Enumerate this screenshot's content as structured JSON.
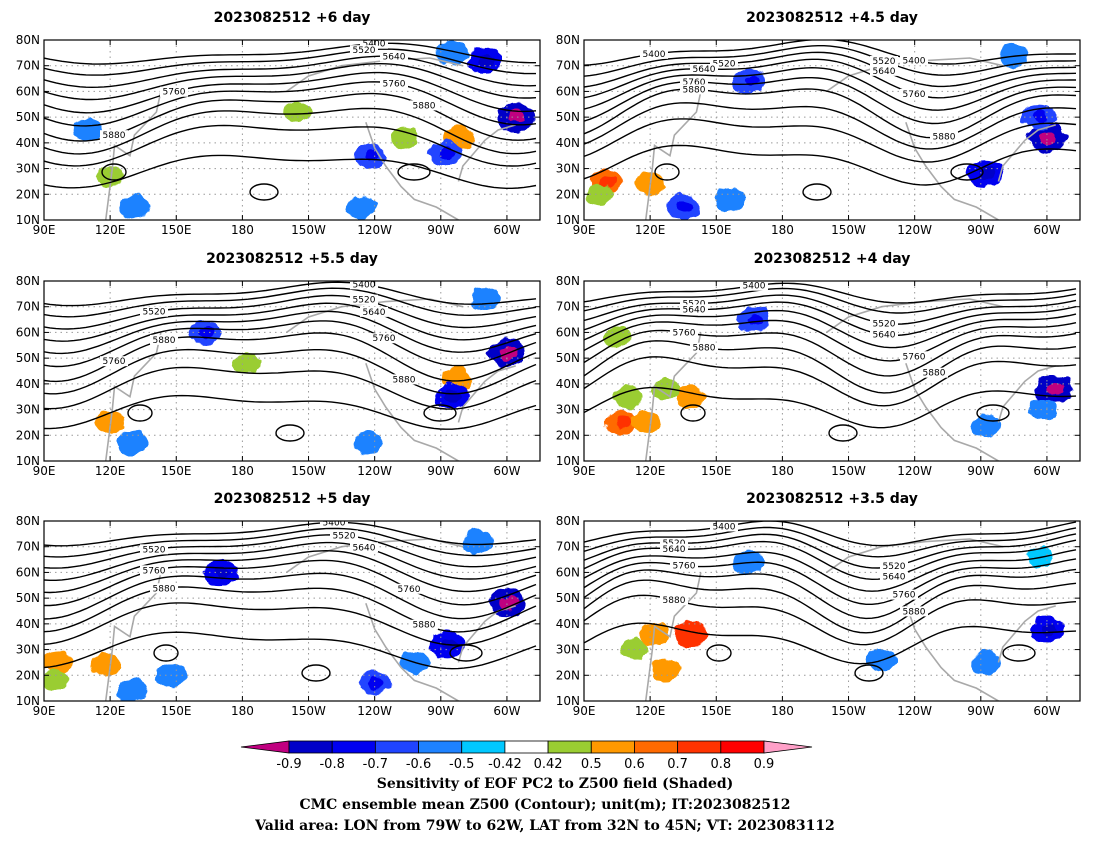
{
  "panels": [
    {
      "title": "2023082512 +6 day",
      "contour_labels": [
        "5400",
        "5520",
        "5640",
        "5760",
        "5880",
        "5760",
        "5880"
      ],
      "shading": [
        {
          "lon": 278,
          "lat": 42,
          "v": 0.58
        },
        {
          "lon": 205,
          "lat": 52,
          "v": 0.46
        },
        {
          "lon": 253,
          "lat": 42,
          "v": 0.46
        },
        {
          "lon": 290,
          "lat": 72,
          "v": -0.72
        },
        {
          "lon": 275,
          "lat": 75,
          "v": -0.6
        },
        {
          "lon": 304,
          "lat": 50,
          "v": -0.85
        },
        {
          "lon": 272,
          "lat": 36,
          "v": -0.7
        },
        {
          "lon": 238,
          "lat": 35,
          "v": -0.62
        },
        {
          "lon": 131,
          "lat": 15,
          "v": -0.6
        },
        {
          "lon": 234,
          "lat": 15,
          "v": -0.6
        },
        {
          "lon": 120,
          "lat": 27,
          "v": 0.46
        },
        {
          "lon": 110,
          "lat": 45,
          "v": -0.55
        }
      ]
    },
    {
      "title": "2023082512 +4.5 day",
      "contour_labels": [
        "5400",
        "5400",
        "5520",
        "5520",
        "5640",
        "5640",
        "5760",
        "5760",
        "5880",
        "5880"
      ],
      "shading": [
        {
          "lon": 100,
          "lat": 25,
          "v": 0.65
        },
        {
          "lon": 97,
          "lat": 20,
          "v": 0.46
        },
        {
          "lon": 120,
          "lat": 24,
          "v": 0.58
        },
        {
          "lon": 165,
          "lat": 64,
          "v": -0.65
        },
        {
          "lon": 300,
          "lat": 42,
          "v": -0.85
        },
        {
          "lon": 296,
          "lat": 50,
          "v": -0.7
        },
        {
          "lon": 135,
          "lat": 15,
          "v": -0.7
        },
        {
          "lon": 156,
          "lat": 18,
          "v": -0.6
        },
        {
          "lon": 272,
          "lat": 28,
          "v": -0.75
        },
        {
          "lon": 285,
          "lat": 74,
          "v": -0.55
        }
      ]
    },
    {
      "title": "2023082512 +5.5 day",
      "contour_labels": [
        "5400",
        "5520",
        "5520",
        "5640",
        "5760",
        "5760",
        "5880",
        "5880"
      ],
      "shading": [
        {
          "lon": 300,
          "lat": 52,
          "v": -0.85
        },
        {
          "lon": 163,
          "lat": 60,
          "v": -0.65
        },
        {
          "lon": 182,
          "lat": 48,
          "v": 0.46
        },
        {
          "lon": 277,
          "lat": 42,
          "v": 0.58
        },
        {
          "lon": 275,
          "lat": 35,
          "v": -0.75
        },
        {
          "lon": 290,
          "lat": 73,
          "v": -0.55
        },
        {
          "lon": 120,
          "lat": 25,
          "v": 0.58
        },
        {
          "lon": 130,
          "lat": 17,
          "v": -0.6
        },
        {
          "lon": 237,
          "lat": 17,
          "v": -0.55
        }
      ]
    },
    {
      "title": "2023082512 +4 day",
      "contour_labels": [
        "5400",
        "5520",
        "5520",
        "5640",
        "5640",
        "5760",
        "5760",
        "5880",
        "5880"
      ],
      "shading": [
        {
          "lon": 107,
          "lat": 25,
          "v": 0.63
        },
        {
          "lon": 118,
          "lat": 25,
          "v": 0.55
        },
        {
          "lon": 138,
          "lat": 35,
          "v": 0.55
        },
        {
          "lon": 110,
          "lat": 35,
          "v": 0.46
        },
        {
          "lon": 127,
          "lat": 38,
          "v": 0.46
        },
        {
          "lon": 303,
          "lat": 38,
          "v": -0.85
        },
        {
          "lon": 167,
          "lat": 65,
          "v": -0.65
        },
        {
          "lon": 298,
          "lat": 30,
          "v": -0.55
        },
        {
          "lon": 272,
          "lat": 24,
          "v": -0.55
        },
        {
          "lon": 105,
          "lat": 58,
          "v": 0.46
        }
      ]
    },
    {
      "title": "2023082512 +5 day",
      "contour_labels": [
        "5400",
        "5520",
        "5520",
        "5640",
        "5760",
        "5760",
        "5880",
        "5880"
      ],
      "shading": [
        {
          "lon": 96,
          "lat": 25,
          "v": 0.55
        },
        {
          "lon": 95,
          "lat": 18,
          "v": 0.46
        },
        {
          "lon": 118,
          "lat": 24,
          "v": 0.55
        },
        {
          "lon": 170,
          "lat": 60,
          "v": -0.72
        },
        {
          "lon": 300,
          "lat": 48,
          "v": -0.85
        },
        {
          "lon": 273,
          "lat": 32,
          "v": -0.75
        },
        {
          "lon": 240,
          "lat": 17,
          "v": -0.62
        },
        {
          "lon": 148,
          "lat": 20,
          "v": -0.6
        },
        {
          "lon": 130,
          "lat": 14,
          "v": -0.6
        },
        {
          "lon": 287,
          "lat": 72,
          "v": -0.6
        },
        {
          "lon": 258,
          "lat": 25,
          "v": -0.55
        }
      ]
    },
    {
      "title": "2023082512 +3.5 day",
      "contour_labels": [
        "5400",
        "5520",
        "5520",
        "5640",
        "5640",
        "5760",
        "5760",
        "5880",
        "5880"
      ],
      "shading": [
        {
          "lon": 138,
          "lat": 36,
          "v": 0.7
        },
        {
          "lon": 122,
          "lat": 36,
          "v": 0.58
        },
        {
          "lon": 113,
          "lat": 30,
          "v": 0.46
        },
        {
          "lon": 127,
          "lat": 22,
          "v": 0.55
        },
        {
          "lon": 300,
          "lat": 38,
          "v": -0.75
        },
        {
          "lon": 165,
          "lat": 64,
          "v": -0.6
        },
        {
          "lon": 272,
          "lat": 25,
          "v": -0.55
        },
        {
          "lon": 225,
          "lat": 26,
          "v": -0.55
        },
        {
          "lon": 297,
          "lat": 66,
          "v": -0.45
        }
      ]
    }
  ],
  "axes": {
    "x_ticks": [
      "90E",
      "120E",
      "150E",
      "180",
      "150W",
      "120W",
      "90W",
      "60W"
    ],
    "y_ticks": [
      "10N",
      "20N",
      "30N",
      "40N",
      "50N",
      "60N",
      "70N",
      "80N"
    ],
    "lon_range": [
      90,
      315
    ],
    "lat_range": [
      10,
      80
    ]
  },
  "colorbar": {
    "labels": [
      "-0.9",
      "-0.8",
      "-0.7",
      "-0.6",
      "-0.5",
      "-0.42",
      "0.42",
      "0.5",
      "0.6",
      "0.7",
      "0.8",
      "0.9"
    ],
    "levels": [
      -0.9,
      -0.8,
      -0.7,
      -0.6,
      -0.5,
      -0.42,
      0.42,
      0.5,
      0.6,
      0.7,
      0.8,
      0.9
    ],
    "colors": [
      "#c00080",
      "#0000c8",
      "#0000f0",
      "#2044ff",
      "#1e82ff",
      "#00c8ff",
      "#ffffff",
      "#9acd32",
      "#ff9900",
      "#ff6a00",
      "#ff3300",
      "#ff0000",
      "#ffa0c8"
    ]
  },
  "caption": {
    "line1": "Sensitivity of EOF PC2 to Z500 field (Shaded)",
    "line2": "CMC ensemble mean Z500 (Contour); unit(m); IT:2023082512",
    "line3": "Valid area: LON from 79W to 62W, LAT from 32N to 45N; VT: 2023083112"
  }
}
